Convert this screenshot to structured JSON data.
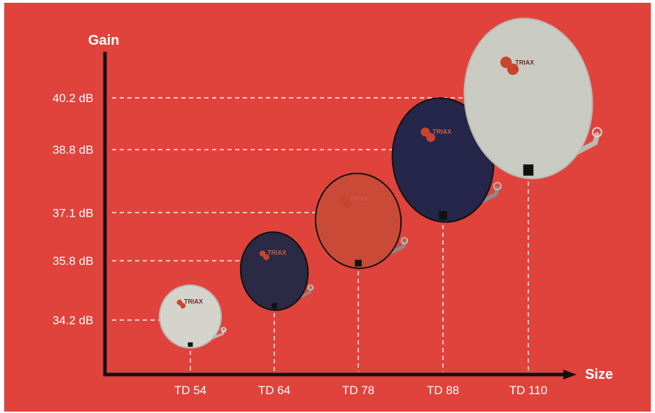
{
  "chart_data": {
    "type": "scatter",
    "xlabel": "Size",
    "ylabel": "Gain",
    "categories": [
      "TD 54",
      "TD 64",
      "TD 78",
      "TD 88",
      "TD 110"
    ],
    "values": [
      34.2,
      35.8,
      37.1,
      38.8,
      40.2
    ],
    "y_ticks": [
      "34.2 dB",
      "35.8 dB",
      "37.1 dB",
      "38.8 dB",
      "40.2 dB"
    ],
    "unit": "dB",
    "brand_mark": "TRIAX",
    "grid": false,
    "dish_colors": [
      "#d4d3cc",
      "#2a2a44",
      "#c94a37",
      "#25264a",
      "#c9cbc2"
    ]
  },
  "colors": {
    "background": "#e0433b",
    "frame": "#ffffff",
    "axis": "#111111",
    "text": "#ffffff"
  }
}
